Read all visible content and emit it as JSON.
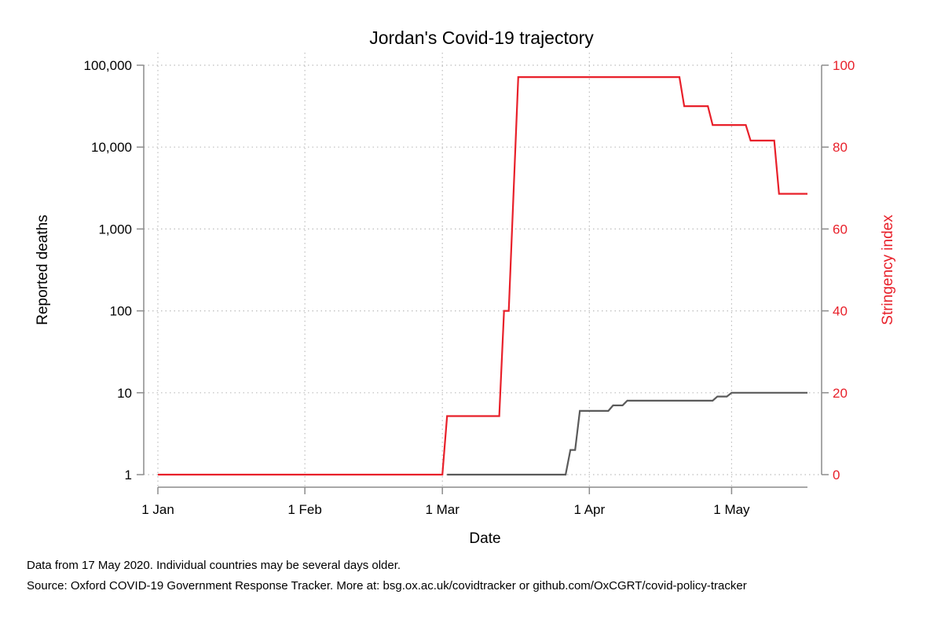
{
  "chart_data": {
    "type": "line",
    "title": "Jordan's Covid-19 trajectory",
    "xlabel": "Date",
    "ylabel_left": "Reported deaths",
    "ylabel_right": "Stringency index",
    "x_ticks": [
      "1 Jan",
      "1 Feb",
      "1 Mar",
      "1 Apr",
      "1 May"
    ],
    "x_tick_dates": [
      "2020-01-01",
      "2020-02-01",
      "2020-03-01",
      "2020-04-01",
      "2020-05-01"
    ],
    "xlim": [
      "2020-01-01",
      "2020-05-17"
    ],
    "y_left_scale": "log",
    "y_left_ticks": [
      1,
      10,
      100,
      1000,
      10000,
      100000
    ],
    "y_left_tick_labels": [
      "1",
      "10",
      "100",
      "1,000",
      "10,000",
      "100,000"
    ],
    "y_left_lim": [
      1,
      100000
    ],
    "y_right_ticks": [
      0,
      20,
      40,
      60,
      80,
      100
    ],
    "y_right_lim": [
      0,
      100
    ],
    "grid": true,
    "series": [
      {
        "name": "Reported deaths",
        "axis": "left",
        "color": "#5a5a5a",
        "points": [
          [
            "2020-03-02",
            1
          ],
          [
            "2020-03-27",
            1
          ],
          [
            "2020-03-28",
            2
          ],
          [
            "2020-03-29",
            2
          ],
          [
            "2020-03-30",
            6
          ],
          [
            "2020-04-05",
            6
          ],
          [
            "2020-04-06",
            7
          ],
          [
            "2020-04-08",
            7
          ],
          [
            "2020-04-09",
            8
          ],
          [
            "2020-04-27",
            8
          ],
          [
            "2020-04-28",
            9
          ],
          [
            "2020-04-30",
            9
          ],
          [
            "2020-05-01",
            10
          ],
          [
            "2020-05-17",
            10
          ]
        ]
      },
      {
        "name": "Stringency index",
        "axis": "right",
        "color": "#e8202a",
        "points": [
          [
            "2020-01-01",
            0
          ],
          [
            "2020-03-01",
            0
          ],
          [
            "2020-03-02",
            14.3
          ],
          [
            "2020-03-13",
            14.3
          ],
          [
            "2020-03-14",
            40
          ],
          [
            "2020-03-15",
            40
          ],
          [
            "2020-03-17",
            97.1
          ],
          [
            "2020-04-20",
            97.1
          ],
          [
            "2020-04-21",
            90
          ],
          [
            "2020-04-26",
            90
          ],
          [
            "2020-04-27",
            85.4
          ],
          [
            "2020-05-04",
            85.4
          ],
          [
            "2020-05-05",
            81.6
          ],
          [
            "2020-05-10",
            81.6
          ],
          [
            "2020-05-11",
            68.6
          ],
          [
            "2020-05-17",
            68.6
          ]
        ]
      }
    ]
  },
  "notes": {
    "line1": "Data from 17 May 2020. Individual countries may be several days older.",
    "line2": "Source: Oxford COVID-19 Government Response Tracker. More at: bsg.ox.ac.uk/covidtracker or github.com/OxCGRT/covid-policy-tracker"
  }
}
